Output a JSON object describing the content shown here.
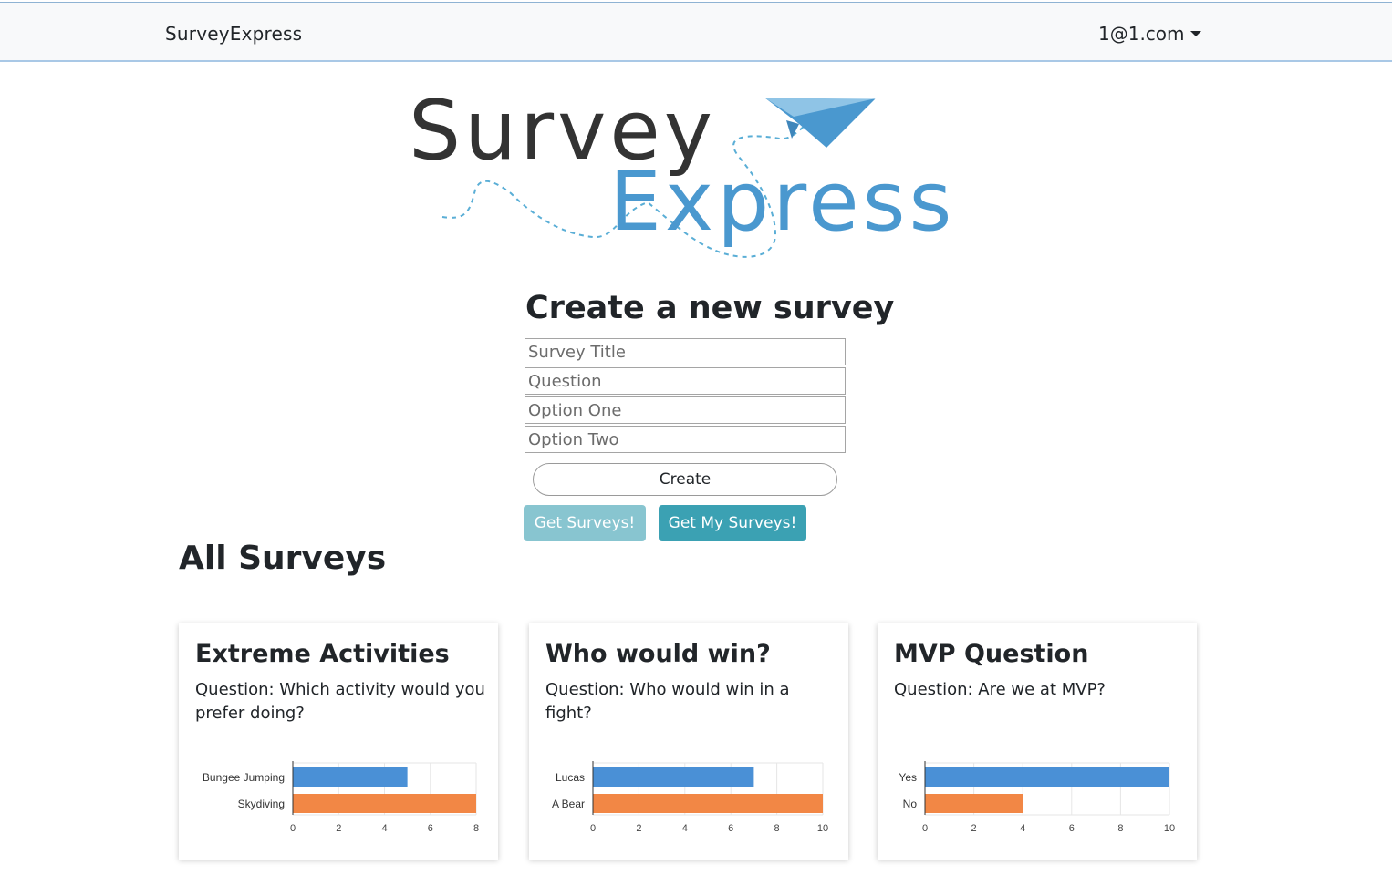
{
  "navbar": {
    "brand": "SurveyExpress",
    "user_email": "1@1.com",
    "caret_icon": "caret-down-icon"
  },
  "logo": {
    "line1": "Survey",
    "line2": "Express",
    "icon": "paper-plane-icon",
    "colors": {
      "dark": "#333333",
      "blue": "#4a98cf",
      "trail": "#5aaed6"
    }
  },
  "create": {
    "title": "Create a new survey",
    "fields": [
      {
        "placeholder": "Survey Title",
        "value": ""
      },
      {
        "placeholder": "Question",
        "value": ""
      },
      {
        "placeholder": "Option One",
        "value": ""
      },
      {
        "placeholder": "Option Two",
        "value": ""
      }
    ],
    "create_label": "Create",
    "get_surveys_label": "Get Surveys!",
    "get_my_surveys_label": "Get My Surveys!"
  },
  "all_surveys": {
    "title": "All Surveys"
  },
  "colors": {
    "bar_blue": "#4a90d6",
    "bar_orange": "#f28745",
    "button_teal": "#3ba1b3",
    "button_teal_light": "#88c5d0"
  },
  "surveys": [
    {
      "title": "Extreme Activities",
      "question": "Question: Which activity would you prefer doing?"
    },
    {
      "title": "Who would win?",
      "question": "Question: Who would win in a fight?"
    },
    {
      "title": "MVP Question",
      "question": "Question: Are we at MVP?"
    }
  ],
  "chart_data": [
    {
      "type": "bar",
      "orientation": "horizontal",
      "title": "",
      "categories": [
        "Bungee Jumping",
        "Skydiving"
      ],
      "values": [
        5,
        8
      ],
      "xlim": [
        0,
        8
      ],
      "xticks": [
        0,
        2,
        4,
        6,
        8
      ],
      "grid": true
    },
    {
      "type": "bar",
      "orientation": "horizontal",
      "title": "",
      "categories": [
        "Lucas",
        "A Bear"
      ],
      "values": [
        7,
        10
      ],
      "xlim": [
        0,
        10
      ],
      "xticks": [
        0,
        2,
        4,
        6,
        8,
        10
      ],
      "grid": true
    },
    {
      "type": "bar",
      "orientation": "horizontal",
      "title": "",
      "categories": [
        "Yes",
        "No"
      ],
      "values": [
        10,
        4
      ],
      "xlim": [
        0,
        10
      ],
      "xticks": [
        0,
        2,
        4,
        6,
        8,
        10
      ],
      "grid": true
    }
  ]
}
